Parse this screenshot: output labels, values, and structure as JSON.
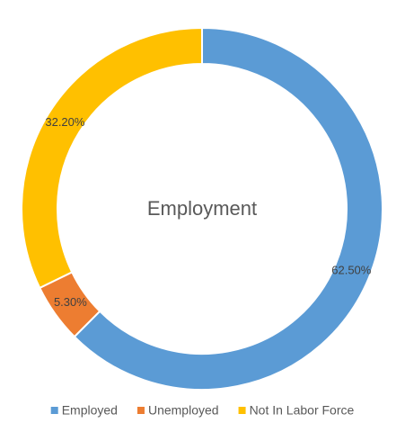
{
  "chart_data": {
    "type": "donut",
    "title": "Employment",
    "categories": [
      "Employed",
      "Unemployed",
      "Not In Labor Force"
    ],
    "values": [
      62.5,
      5.3,
      32.2
    ],
    "value_labels": [
      "62.50%",
      "5.30%",
      "32.20%"
    ],
    "colors": [
      "#5b9bd5",
      "#ed7d31",
      "#ffc000"
    ],
    "legend": "bottom"
  }
}
